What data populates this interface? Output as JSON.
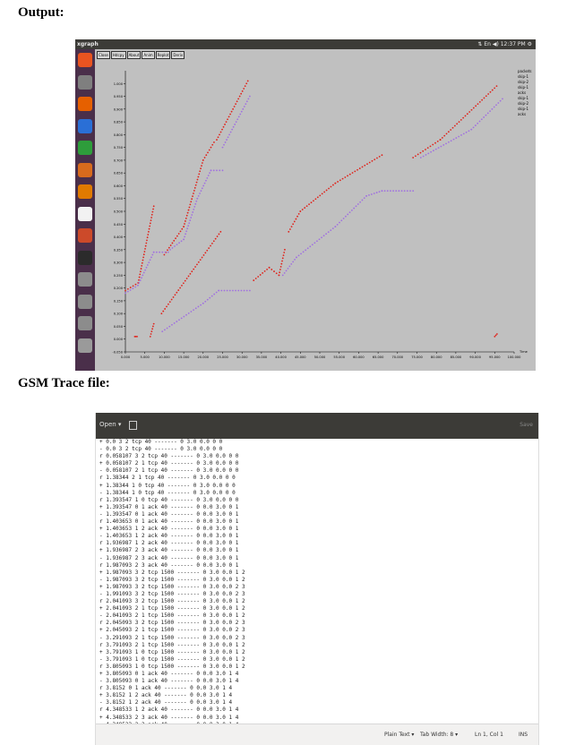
{
  "headings": {
    "output": "Output:",
    "trace": "GSM Trace file:"
  },
  "xgraph": {
    "app_title": "xgraph",
    "top_status": "⇅ En ◀) 12:37 PM ⚙",
    "menu": [
      "Close",
      "Hdcpy",
      "About",
      "Anim",
      "Replot",
      "Deriv"
    ],
    "axis_unit": "packets",
    "x_unit": "Time",
    "legend": [
      "packets",
      "skip-1",
      "skip-2",
      "skip-1",
      "acks",
      "skip-1",
      "skip-2",
      "skip-1",
      "acks"
    ],
    "colors": {
      "red": "#e0221a",
      "purple": "#a070e0",
      "plot_bg": "#c0c0c0"
    },
    "launcher_icons": [
      "ubuntu-icon",
      "files-icon",
      "firefox-icon",
      "writer-icon",
      "calc-icon",
      "impress-icon",
      "software-icon",
      "amazon-icon",
      "settings-icon",
      "terminal-icon",
      "disk-icon",
      "disk-icon",
      "help-icon",
      "trash-icon"
    ],
    "chart_data": {
      "type": "scatter",
      "x_ticks": [
        "0.000",
        "5.000",
        "10.000",
        "15.000",
        "20.000",
        "25.000",
        "30.000",
        "35.000",
        "40.000",
        "45.000",
        "50.000",
        "55.000",
        "60.000",
        "65.000",
        "70.000",
        "75.000",
        "80.000",
        "85.000",
        "90.000",
        "95.000",
        "100.000"
      ],
      "y_ticks": [
        "1.000",
        "0.950",
        "0.900",
        "0.850",
        "0.800",
        "0.750",
        "0.700",
        "0.650",
        "0.600",
        "0.550",
        "0.500",
        "0.450",
        "0.400",
        "0.350",
        "0.300",
        "0.250",
        "0.200",
        "0.150",
        "0.100",
        "0.050",
        "0.000",
        "-0.050"
      ],
      "xlim": [
        0,
        100
      ],
      "ylim": [
        -0.05,
        1.05
      ],
      "series": [
        {
          "color": "#e0221a",
          "segments": [
            [
              [
                0,
                0.19
              ],
              [
                3.3,
                0.22
              ],
              [
                7.3,
                0.52
              ]
            ],
            [
              [
                10,
                0.33
              ],
              [
                15,
                0.44
              ],
              [
                20,
                0.7
              ],
              [
                22.8,
                0.77
              ]
            ],
            [
              [
                23.5,
                0.78
              ],
              [
                31.5,
                1.01
              ]
            ],
            [
              [
                2.4,
                0.01
              ],
              [
                3,
                0.01
              ]
            ],
            [
              [
                6.4,
                0.01
              ],
              [
                7.3,
                0.06
              ]
            ],
            [
              [
                9.3,
                0.1
              ],
              [
                24.5,
                0.42
              ]
            ],
            [
              [
                33,
                0.23
              ],
              [
                37,
                0.28
              ],
              [
                39.5,
                0.25
              ],
              [
                41,
                0.35
              ]
            ],
            [
              [
                42,
                0.42
              ],
              [
                45,
                0.5
              ],
              [
                54,
                0.61
              ],
              [
                66,
                0.72
              ]
            ],
            [
              [
                74,
                0.71
              ],
              [
                81,
                0.78
              ],
              [
                95.5,
                0.99
              ]
            ],
            [
              [
                95,
                0.01
              ],
              [
                95.6,
                0.02
              ]
            ]
          ]
        },
        {
          "color": "#a070e0",
          "segments": [
            [
              [
                0,
                0.18
              ],
              [
                3.2,
                0.21
              ],
              [
                7.3,
                0.34
              ],
              [
                11,
                0.34
              ]
            ],
            [
              [
                11.5,
                0.35
              ],
              [
                15,
                0.39
              ],
              [
                18.5,
                0.55
              ],
              [
                22,
                0.66
              ],
              [
                25,
                0.66
              ]
            ],
            [
              [
                25,
                0.75
              ],
              [
                32,
                0.95
              ]
            ],
            [
              [
                9.5,
                0.03
              ],
              [
                20,
                0.14
              ],
              [
                24,
                0.19
              ],
              [
                32,
                0.19
              ]
            ],
            [
              [
                40.5,
                0.25
              ],
              [
                44,
                0.32
              ],
              [
                54,
                0.44
              ],
              [
                62,
                0.56
              ],
              [
                66,
                0.58
              ],
              [
                74,
                0.58
              ]
            ],
            [
              [
                76,
                0.71
              ],
              [
                89,
                0.82
              ],
              [
                97,
                0.94
              ]
            ]
          ]
        }
      ]
    }
  },
  "gedit": {
    "open_label": "Open ▾",
    "save_label": "Save",
    "lines": [
      "+ 0.0 3 2 tcp 40 ------- 0 3.0 0.0 0 0",
      "- 0.0 3 2 tcp 40 ------- 0 3.0 0.0 0 0",
      "r 0.058107 3 2 tcp 40 ------- 0 3.0 0.0 0 0",
      "+ 0.058107 2 1 tcp 40 ------- 0 3.0 0.0 0 0",
      "- 0.058107 2 1 tcp 40 ------- 0 3.0 0.0 0 0",
      "r 1.38344 2 1 tcp 40 ------- 0 3.0 0.0 0 0",
      "+ 1.38344 1 0 tcp 40 ------- 0 3.0 0.0 0 0",
      "- 1.38344 1 0 tcp 40 ------- 0 3.0 0.0 0 0",
      "r 1.393547 1 0 tcp 40 ------- 0 3.0 0.0 0 0",
      "+ 1.393547 0 1 ack 40 ------- 0 0.0 3.0 0 1",
      "- 1.393547 0 1 ack 40 ------- 0 0.0 3.0 0 1",
      "r 1.403653 0 1 ack 40 ------- 0 0.0 3.0 0 1",
      "+ 1.403653 1 2 ack 40 ------- 0 0.0 3.0 0 1",
      "- 1.403653 1 2 ack 40 ------- 0 0.0 3.0 0 1",
      "r 1.936987 1 2 ack 40 ------- 0 0.0 3.0 0 1",
      "+ 1.936987 2 3 ack 40 ------- 0 0.0 3.0 0 1",
      "- 1.936987 2 3 ack 40 ------- 0 0.0 3.0 0 1",
      "r 1.987093 2 3 ack 40 ------- 0 0.0 3.0 0 1",
      "+ 1.987093 3 2 tcp 1500 ------- 0 3.0 0.0 1 2",
      "- 1.987093 3 2 tcp 1500 ------- 0 3.0 0.0 1 2",
      "+ 1.987093 3 2 tcp 1500 ------- 0 3.0 0.0 2 3",
      "- 1.991093 3 2 tcp 1500 ------- 0 3.0 0.0 2 3",
      "r 2.041093 3 2 tcp 1500 ------- 0 3.0 0.0 1 2",
      "+ 2.041093 2 1 tcp 1500 ------- 0 3.0 0.0 1 2",
      "- 2.041093 2 1 tcp 1500 ------- 0 3.0 0.0 1 2",
      "r 2.045093 3 2 tcp 1500 ------- 0 3.0 0.0 2 3",
      "+ 2.045093 2 1 tcp 1500 ------- 0 3.0 0.0 2 3",
      "- 3.291093 2 1 tcp 1500 ------- 0 3.0 0.0 2 3",
      "r 3.791093 2 1 tcp 1500 ------- 0 3.0 0.0 1 2",
      "+ 3.791093 1 0 tcp 1500 ------- 0 3.0 0.0 1 2",
      "- 3.791093 1 0 tcp 1500 ------- 0 3.0 0.0 1 2",
      "r 3.805093 1 0 tcp 1500 ------- 0 3.0 0.0 1 2",
      "+ 3.805093 0 1 ack 40 ------- 0 0.0 3.0 1 4",
      "- 3.805093 0 1 ack 40 ------- 0 0.0 3.0 1 4",
      "r 3.8152 0 1 ack 40 ------- 0 0.0 3.0 1 4",
      "+ 3.8152 1 2 ack 40 ------- 0 0.0 3.0 1 4",
      "- 3.8152 1 2 ack 40 ------- 0 0.0 3.0 1 4",
      "r 4.348533 1 2 ack 40 ------- 0 0.0 3.0 1 4",
      "+ 4.348533 2 3 ack 40 ------- 0 0.0 3.0 1 4",
      "- 4.348533 2 3 ack 40 ------- 0 0.0 3.0 1 4"
    ],
    "status": {
      "mode": "Plain Text ▾",
      "tab": "Tab Width: 8 ▾",
      "pos": "Ln 1, Col 1",
      "ins": "INS"
    }
  }
}
